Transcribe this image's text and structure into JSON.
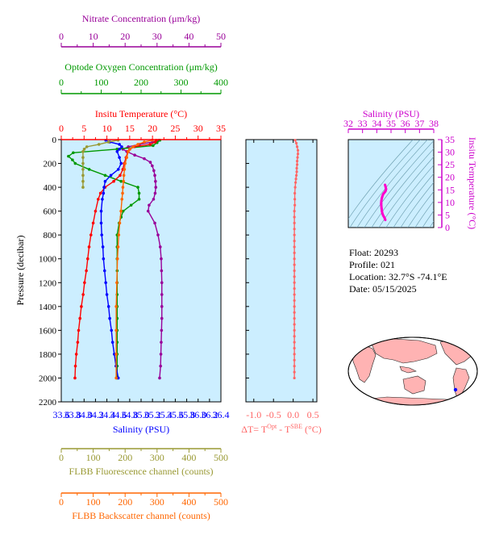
{
  "chart_data": {
    "type": "line",
    "main_panel": {
      "ylabel": "Pressure (decibar)",
      "ylim": [
        0,
        2200
      ],
      "yticks": [
        0,
        200,
        400,
        600,
        800,
        1000,
        1200,
        1400,
        1600,
        1800,
        2000,
        2200
      ],
      "axes": {
        "nitrate": {
          "label": "Nitrate Concentration (μm/kg)",
          "range": [
            0,
            50
          ],
          "ticks": [
            0,
            10,
            20,
            30,
            40,
            50
          ],
          "color": "#990099"
        },
        "oxygen": {
          "label": "Optode Oxygen Concentration (μm/kg)",
          "range": [
            0,
            400
          ],
          "ticks": [
            0,
            100,
            200,
            300,
            400
          ],
          "color": "#009900"
        },
        "temperature": {
          "label": "Insitu Temperature (°C)",
          "range": [
            0,
            35
          ],
          "ticks": [
            0,
            5,
            10,
            15,
            20,
            25,
            30,
            35
          ],
          "color": "#ff0000"
        },
        "salinity": {
          "label": "Salinity (PSU)",
          "range": [
            33.6,
            36.4
          ],
          "ticks": [
            "33.6",
            "33.8",
            "34.0",
            "34.2",
            "34.4",
            "34.6",
            "34.8",
            "35.0",
            "35.2",
            "35.4",
            "35.6",
            "35.8",
            "36.0",
            "36.2",
            "36.4"
          ],
          "color": "#0000ff"
        },
        "fluorescence": {
          "label": "FLBB Fluorescence channel (counts)",
          "range": [
            0,
            500
          ],
          "ticks": [
            0,
            100,
            200,
            300,
            400,
            500
          ],
          "color": "#999933"
        },
        "backscatter": {
          "label": "FLBB Backscatter channel (counts)",
          "range": [
            0,
            500
          ],
          "ticks": [
            0,
            100,
            200,
            300,
            400,
            500
          ],
          "color": "#ff6600"
        }
      },
      "series": [
        {
          "name": "Nitrate",
          "axis": "nitrate",
          "color": "#990099",
          "pressure": [
            5,
            20,
            40,
            60,
            80,
            100,
            130,
            160,
            190,
            220,
            260,
            300,
            350,
            400,
            450,
            500,
            550,
            600,
            700,
            800,
            900,
            1000,
            1100,
            1200,
            1300,
            1400,
            1500,
            1600,
            1700,
            1800,
            1900,
            2000
          ],
          "values": [
            30.5,
            28.6,
            24.5,
            21,
            19.3,
            20.5,
            23,
            26,
            27.9,
            28.5,
            29,
            29.3,
            29.5,
            29.6,
            29.4,
            28.9,
            27.5,
            27.2,
            29.3,
            30.3,
            31,
            31.3,
            31.4,
            31.5,
            31.5,
            31.5,
            31.5,
            31.4,
            31.3,
            31.2,
            31.1,
            30.8
          ]
        },
        {
          "name": "Oxygen",
          "axis": "oxygen",
          "color": "#009900",
          "pressure": [
            5,
            25,
            50,
            80,
            110,
            140,
            170,
            200,
            250,
            300,
            350,
            400,
            450,
            500,
            550,
            600,
            650,
            700,
            800,
            900,
            1000,
            1100,
            1200,
            1300,
            1400,
            1500,
            1600,
            1700,
            1800,
            1900,
            2000
          ],
          "values": [
            247,
            240,
            230,
            140,
            30,
            18,
            28,
            35,
            70,
            110,
            150,
            192,
            195,
            195,
            175,
            155,
            150,
            145,
            140,
            140,
            140,
            140,
            140,
            140,
            140,
            140,
            140,
            140,
            140,
            140,
            140
          ]
        },
        {
          "name": "Temperature",
          "axis": "temperature",
          "color": "#ff0000",
          "pressure": [
            5,
            20,
            40,
            60,
            80,
            100,
            150,
            200,
            250,
            300,
            350,
            400,
            450,
            500,
            600,
            700,
            800,
            900,
            1000,
            1100,
            1200,
            1300,
            1400,
            1500,
            1600,
            1700,
            1800,
            1900,
            2000
          ],
          "values": [
            20.8,
            20.6,
            19.5,
            16,
            15,
            14.6,
            14.2,
            13.8,
            13.5,
            12.9,
            11.5,
            9.6,
            8.6,
            8.1,
            7.5,
            7,
            6.5,
            6.1,
            5.8,
            5.5,
            5.1,
            4.8,
            4.4,
            4.1,
            3.8,
            3.6,
            3.3,
            3.1,
            3
          ]
        },
        {
          "name": "Salinity",
          "axis": "salinity",
          "color": "#0000ff",
          "pressure": [
            5,
            20,
            40,
            60,
            80,
            100,
            150,
            200,
            250,
            300,
            350,
            400,
            450,
            500,
            600,
            700,
            800,
            900,
            1000,
            1100,
            1200,
            1300,
            1400,
            1500,
            1600,
            1700,
            1800,
            1900,
            2000
          ],
          "values": [
            34.38,
            34.45,
            34.62,
            34.66,
            34.62,
            34.58,
            34.62,
            34.65,
            34.6,
            34.47,
            34.37,
            34.35,
            34.34,
            34.32,
            34.3,
            34.3,
            34.31,
            34.33,
            34.34,
            34.36,
            34.38,
            34.4,
            34.43,
            34.45,
            34.48,
            34.5,
            34.53,
            34.56,
            34.6
          ]
        },
        {
          "name": "Fluorescence",
          "axis": "fluorescence",
          "color": "#999933",
          "pressure": [
            5,
            20,
            40,
            60,
            80,
            100,
            150,
            200,
            250,
            300,
            350,
            400
          ],
          "values": [
            178,
            148,
            118,
            80,
            72,
            68,
            68,
            68,
            68,
            68,
            68,
            68
          ]
        },
        {
          "name": "Backscatter",
          "axis": "backscatter",
          "color": "#ff6600",
          "pressure": [
            5,
            20,
            40,
            60,
            80,
            100,
            150,
            200,
            250,
            300,
            350,
            400,
            450,
            500,
            600,
            700,
            800,
            900,
            1000,
            1200,
            1400,
            1600,
            1800,
            2000
          ],
          "values": [
            285,
            260,
            240,
            225,
            215,
            210,
            205,
            200,
            198,
            196,
            195,
            193,
            192,
            190,
            187,
            183,
            180,
            178,
            176,
            174,
            172,
            172,
            172,
            172
          ]
        }
      ]
    },
    "delta_panel": {
      "xlabel": "ΔT= T^Opt - T^SBE (°C)",
      "xlim": [
        -1.2,
        0.6
      ],
      "xticks": [
        "-1.0",
        "-0.5",
        "0.0",
        "0.5"
      ],
      "color": "#ff6666",
      "pressure": [
        5,
        30,
        60,
        90,
        120,
        150,
        180,
        210,
        240,
        270,
        300,
        330,
        360,
        400,
        450,
        500,
        550,
        600,
        650,
        700,
        750,
        800,
        850,
        900,
        950,
        1000,
        1050,
        1100,
        1150,
        1200,
        1250,
        1300,
        1350,
        1400,
        1450,
        1500,
        1550,
        1600,
        1650,
        1700,
        1750,
        1800,
        1850,
        1900,
        1950,
        2000
      ],
      "values": [
        0.05,
        0.08,
        0.1,
        0.12,
        0.12,
        0.11,
        0.1,
        0.1,
        0.09,
        0.09,
        0.08,
        0.07,
        0.06,
        0.05,
        0.04,
        0.04,
        0.04,
        0.03,
        0.03,
        0.03,
        0.03,
        0.03,
        0.03,
        0.03,
        0.03,
        0.03,
        0.03,
        0.03,
        0.03,
        0.03,
        0.03,
        0.03,
        0.03,
        0.03,
        0.03,
        0.03,
        0.03,
        0.03,
        0.03,
        0.03,
        0.03,
        0.03,
        0.03,
        0.03,
        0.03,
        0.03
      ]
    },
    "ts_panel": {
      "xlabel": "Salinity (PSU)",
      "ylabel": "Insitu Temperature (°C)",
      "xlim": [
        32,
        38
      ],
      "xticks": [
        32,
        33,
        34,
        35,
        36,
        37,
        38
      ],
      "ylim": [
        0,
        35
      ],
      "yticks": [
        0,
        5,
        10,
        15,
        20,
        25,
        30,
        35
      ],
      "color": "#ff00cc",
      "salinity": [
        34.6,
        34.55,
        34.45,
        34.4,
        34.36,
        34.34,
        34.32,
        34.31,
        34.32,
        34.35,
        34.38,
        34.42,
        34.46,
        34.52,
        34.58,
        34.62,
        34.65,
        34.62,
        34.58
      ],
      "temperature": [
        3,
        3.8,
        4.8,
        5.5,
        6.5,
        7.5,
        8.6,
        9.6,
        10.5,
        11.5,
        12.2,
        12.9,
        13.4,
        13.8,
        14.2,
        14.6,
        15.3,
        16.2,
        17
      ]
    }
  },
  "float_info": {
    "float": "Float:  20293",
    "profile": "Profile:  021",
    "location": "Location:  32.7°S  -74.1°E",
    "date": "Date:  05/15/2025"
  },
  "map": {
    "land_color": "#ffb3b3",
    "ocean_color": "#ffffff",
    "marker_color": "#0000ff"
  }
}
